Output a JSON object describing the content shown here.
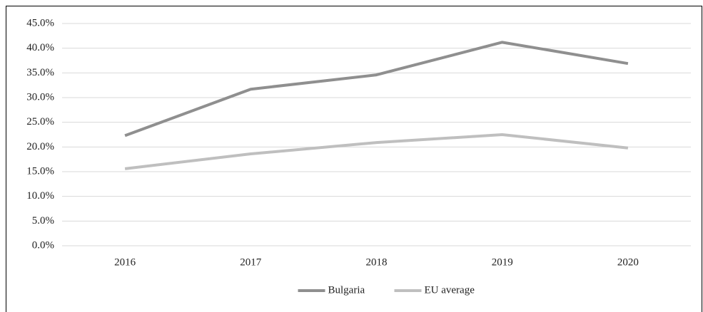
{
  "chart_data": {
    "type": "line",
    "categories": [
      "2016",
      "2017",
      "2018",
      "2019",
      "2020"
    ],
    "series": [
      {
        "name": "Bulgaria",
        "color": "#8f8f8f",
        "values": [
          22.3,
          31.7,
          34.6,
          41.2,
          36.9
        ]
      },
      {
        "name": "EU average",
        "color": "#bfbfbf",
        "values": [
          15.6,
          18.6,
          20.9,
          22.5,
          19.8
        ]
      }
    ],
    "ylim": [
      0,
      45
    ],
    "yticks": [
      {
        "value": 0,
        "label": "0.0%"
      },
      {
        "value": 5,
        "label": "5.0%"
      },
      {
        "value": 10,
        "label": "10.0%"
      },
      {
        "value": 15,
        "label": "15.0%"
      },
      {
        "value": 20,
        "label": "20.0%"
      },
      {
        "value": 25,
        "label": "25.0%"
      },
      {
        "value": 30,
        "label": "30.0%"
      },
      {
        "value": 35,
        "label": "35.0%"
      },
      {
        "value": 40,
        "label": "40.0%"
      },
      {
        "value": 45,
        "label": "45.0%"
      }
    ],
    "grid": true,
    "legend": "bottom"
  }
}
